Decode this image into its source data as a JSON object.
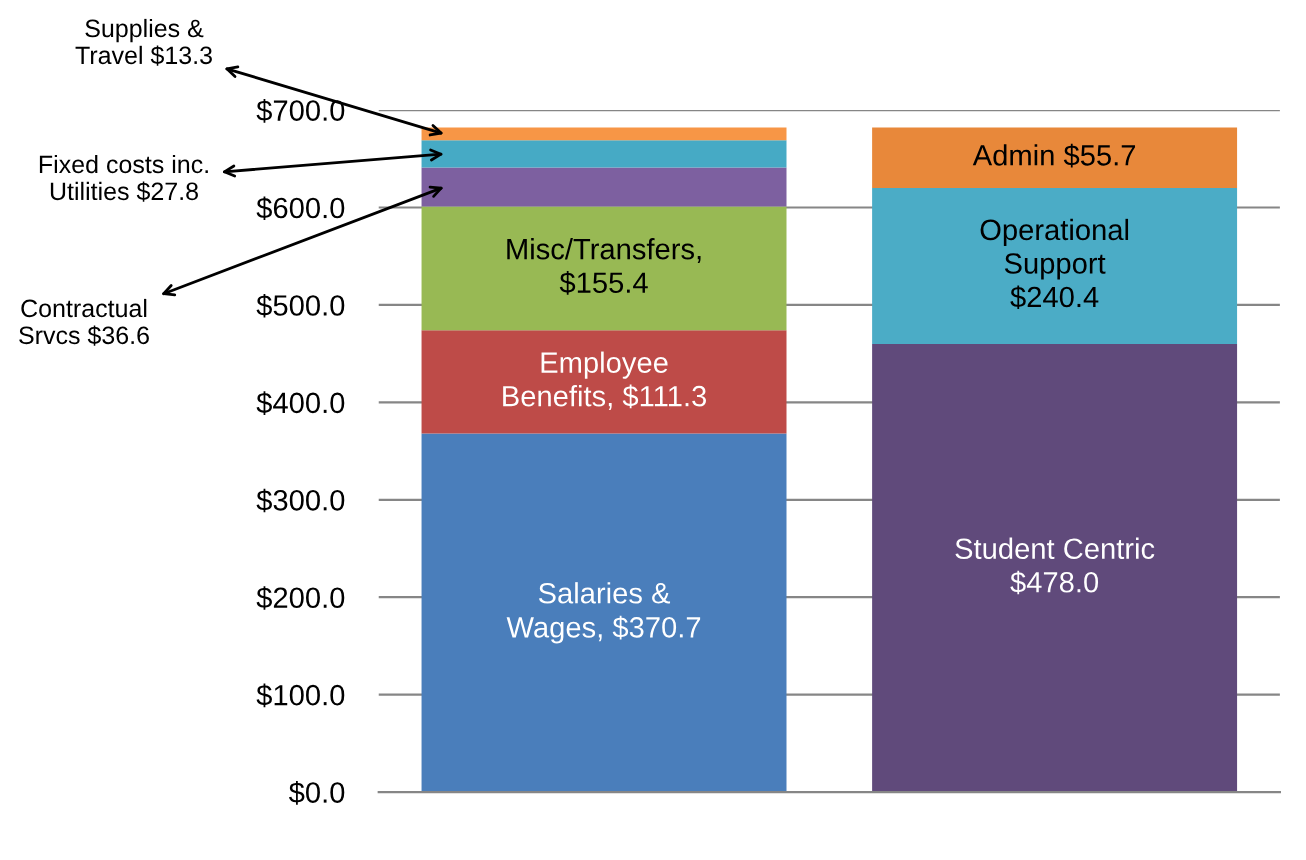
{
  "chart_data": {
    "type": "bar",
    "stacked": true,
    "categories": [
      null,
      null
    ],
    "series": [
      {
        "color": "#4a7ebb",
        "values": [
          368,
          null
        ]
      },
      {
        "color": "#be4b48",
        "values": [
          106,
          null
        ]
      },
      {
        "color": "#98b954",
        "values": [
          127,
          null
        ]
      },
      {
        "color": "#7d60a0",
        "values": [
          40,
          null
        ]
      },
      {
        "color": "#46aac5",
        "values": [
          28,
          null
        ]
      },
      {
        "color": "#f79646",
        "values": [
          13,
          null
        ]
      },
      {
        "color": "#604a7b",
        "values": [
          null,
          460
        ]
      },
      {
        "color": "#4bacc6",
        "values": [
          null,
          160
        ]
      },
      {
        "color": "#e8883a",
        "values": [
          null,
          62
        ]
      }
    ],
    "annotations": [
      "Salaries &\nWages, $370.7",
      "Employee\nBenefits, $111.3",
      "Misc/Transfers,\n$155.4",
      "Contractual\nSrvcs $36.6",
      "Fixed costs inc.\nUtilities $27.8",
      "Supplies &\nTravel $13.3",
      "Student Centric\n$478.0",
      "Operational\nSupport\n$240.4",
      "Admin $55.7"
    ],
    "ylim": [
      0,
      700
    ],
    "yticks": [
      {
        "value": 0,
        "label": "$0.0"
      },
      {
        "value": 100,
        "label": "$100.0"
      },
      {
        "value": 200,
        "label": "$200.0"
      },
      {
        "value": 300,
        "label": "$300.0"
      },
      {
        "value": 400,
        "label": "$400.0"
      },
      {
        "value": 500,
        "label": "$500.0"
      },
      {
        "value": 600,
        "label": "$600.0"
      },
      {
        "value": 700,
        "label": "$700.0"
      }
    ],
    "grid": "y"
  }
}
